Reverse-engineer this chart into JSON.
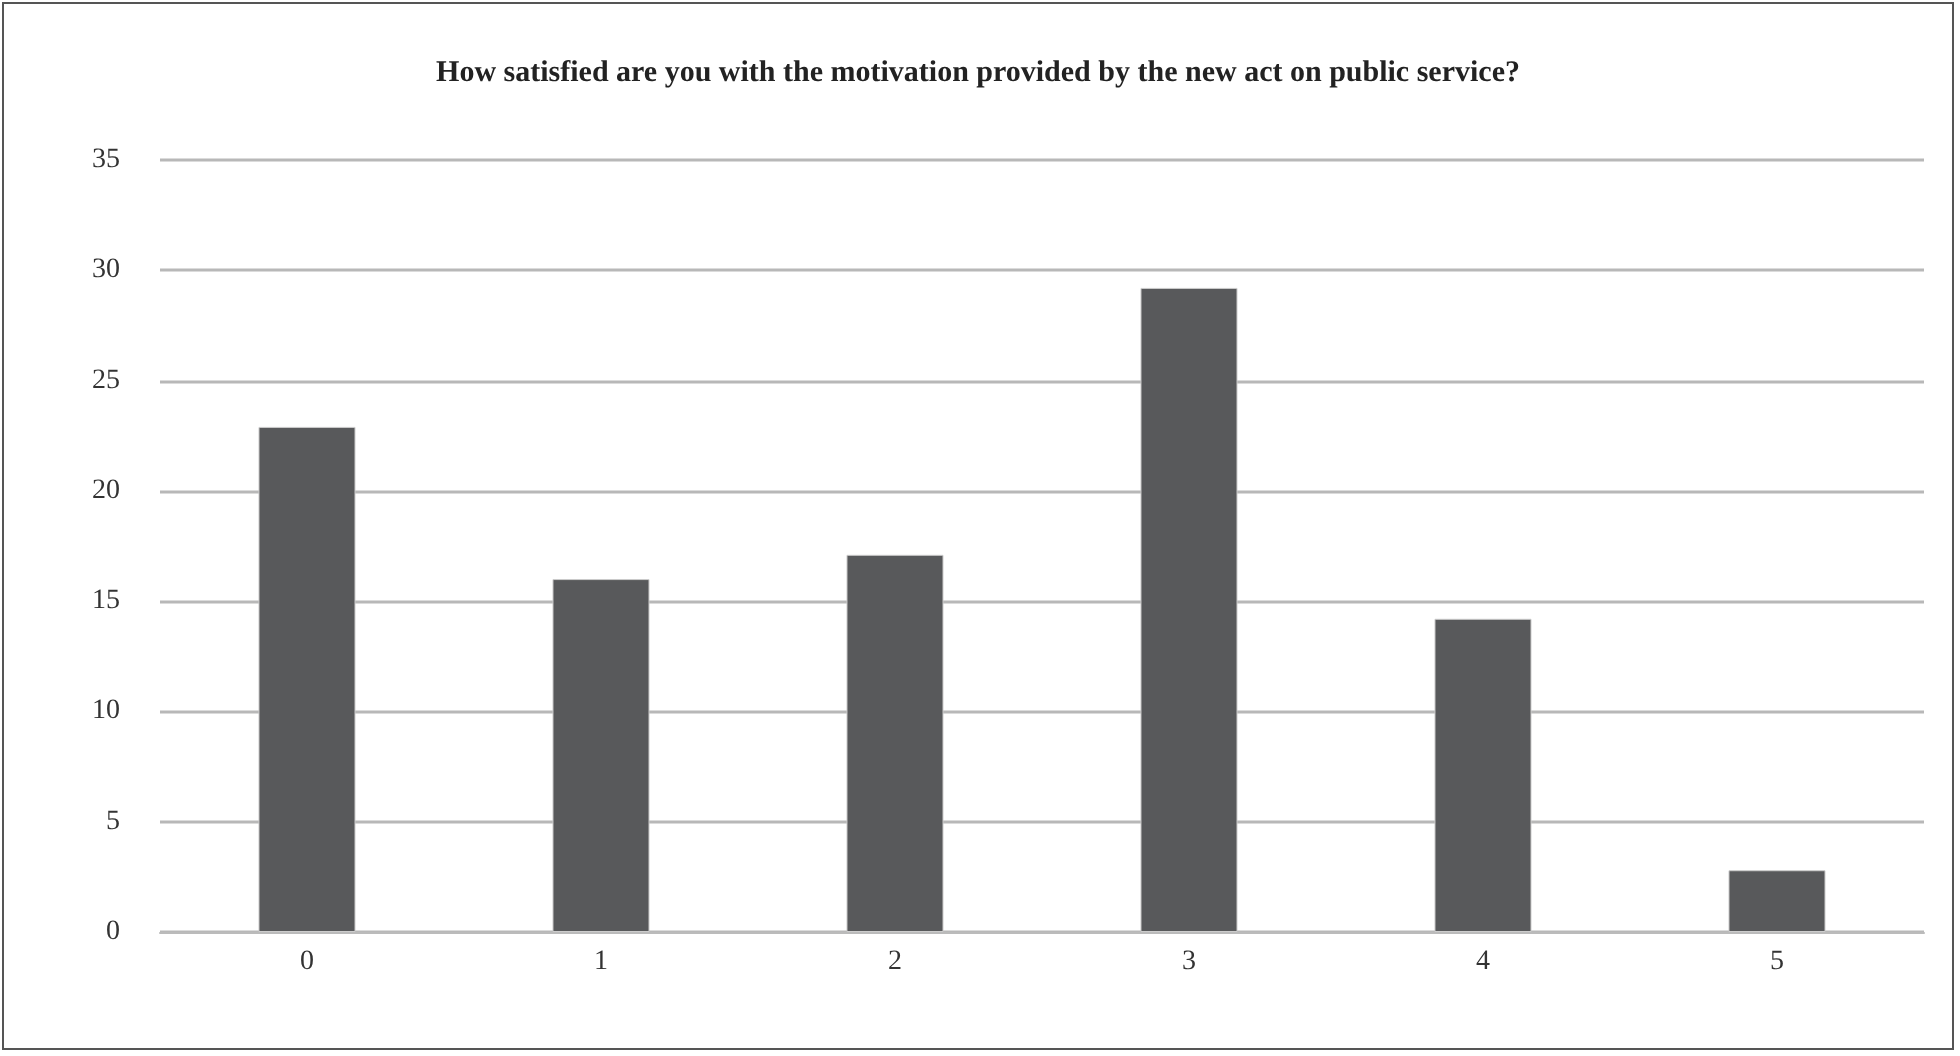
{
  "chart_data": {
    "type": "bar",
    "title": "How satisfied are you with the motivation provided by the new act on public service?",
    "categories": [
      "0",
      "1",
      "2",
      "3",
      "4",
      "5"
    ],
    "values": [
      22.9,
      16,
      17.1,
      29.2,
      14.2,
      2.8
    ],
    "color": "#58595b",
    "ylim": [
      0,
      35
    ],
    "yticks": [
      0,
      5,
      10,
      15,
      20,
      25,
      30,
      35
    ],
    "grid": "y"
  }
}
